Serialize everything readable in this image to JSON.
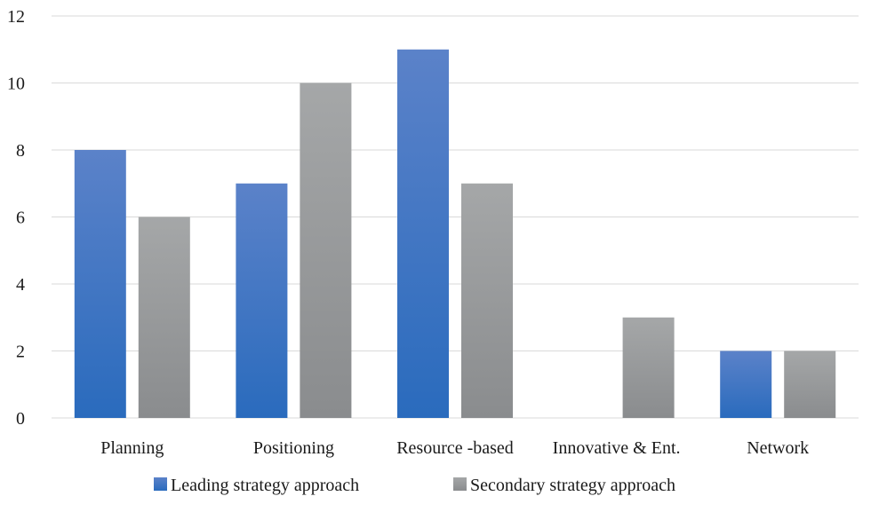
{
  "chart_data": {
    "type": "bar",
    "title": "",
    "xlabel": "",
    "ylabel": "",
    "categories": [
      "Planning",
      "Positioning",
      "Resource -based",
      "Innovative & Ent.",
      "Network"
    ],
    "series": [
      {
        "name": "Leading strategy approach",
        "values": [
          8,
          7,
          11,
          0,
          2
        ],
        "color_top": "#5b82c9",
        "color_bottom": "#2a6bbd"
      },
      {
        "name": "Secondary strategy approach",
        "values": [
          6,
          10,
          7,
          3,
          2
        ],
        "color_top": "#a5a7a8",
        "color_bottom": "#8a8c8e"
      }
    ],
    "ylim": [
      0,
      12
    ],
    "yticks": [
      0,
      2,
      4,
      6,
      8,
      10,
      12
    ],
    "grid": true,
    "legend": "bottom"
  }
}
